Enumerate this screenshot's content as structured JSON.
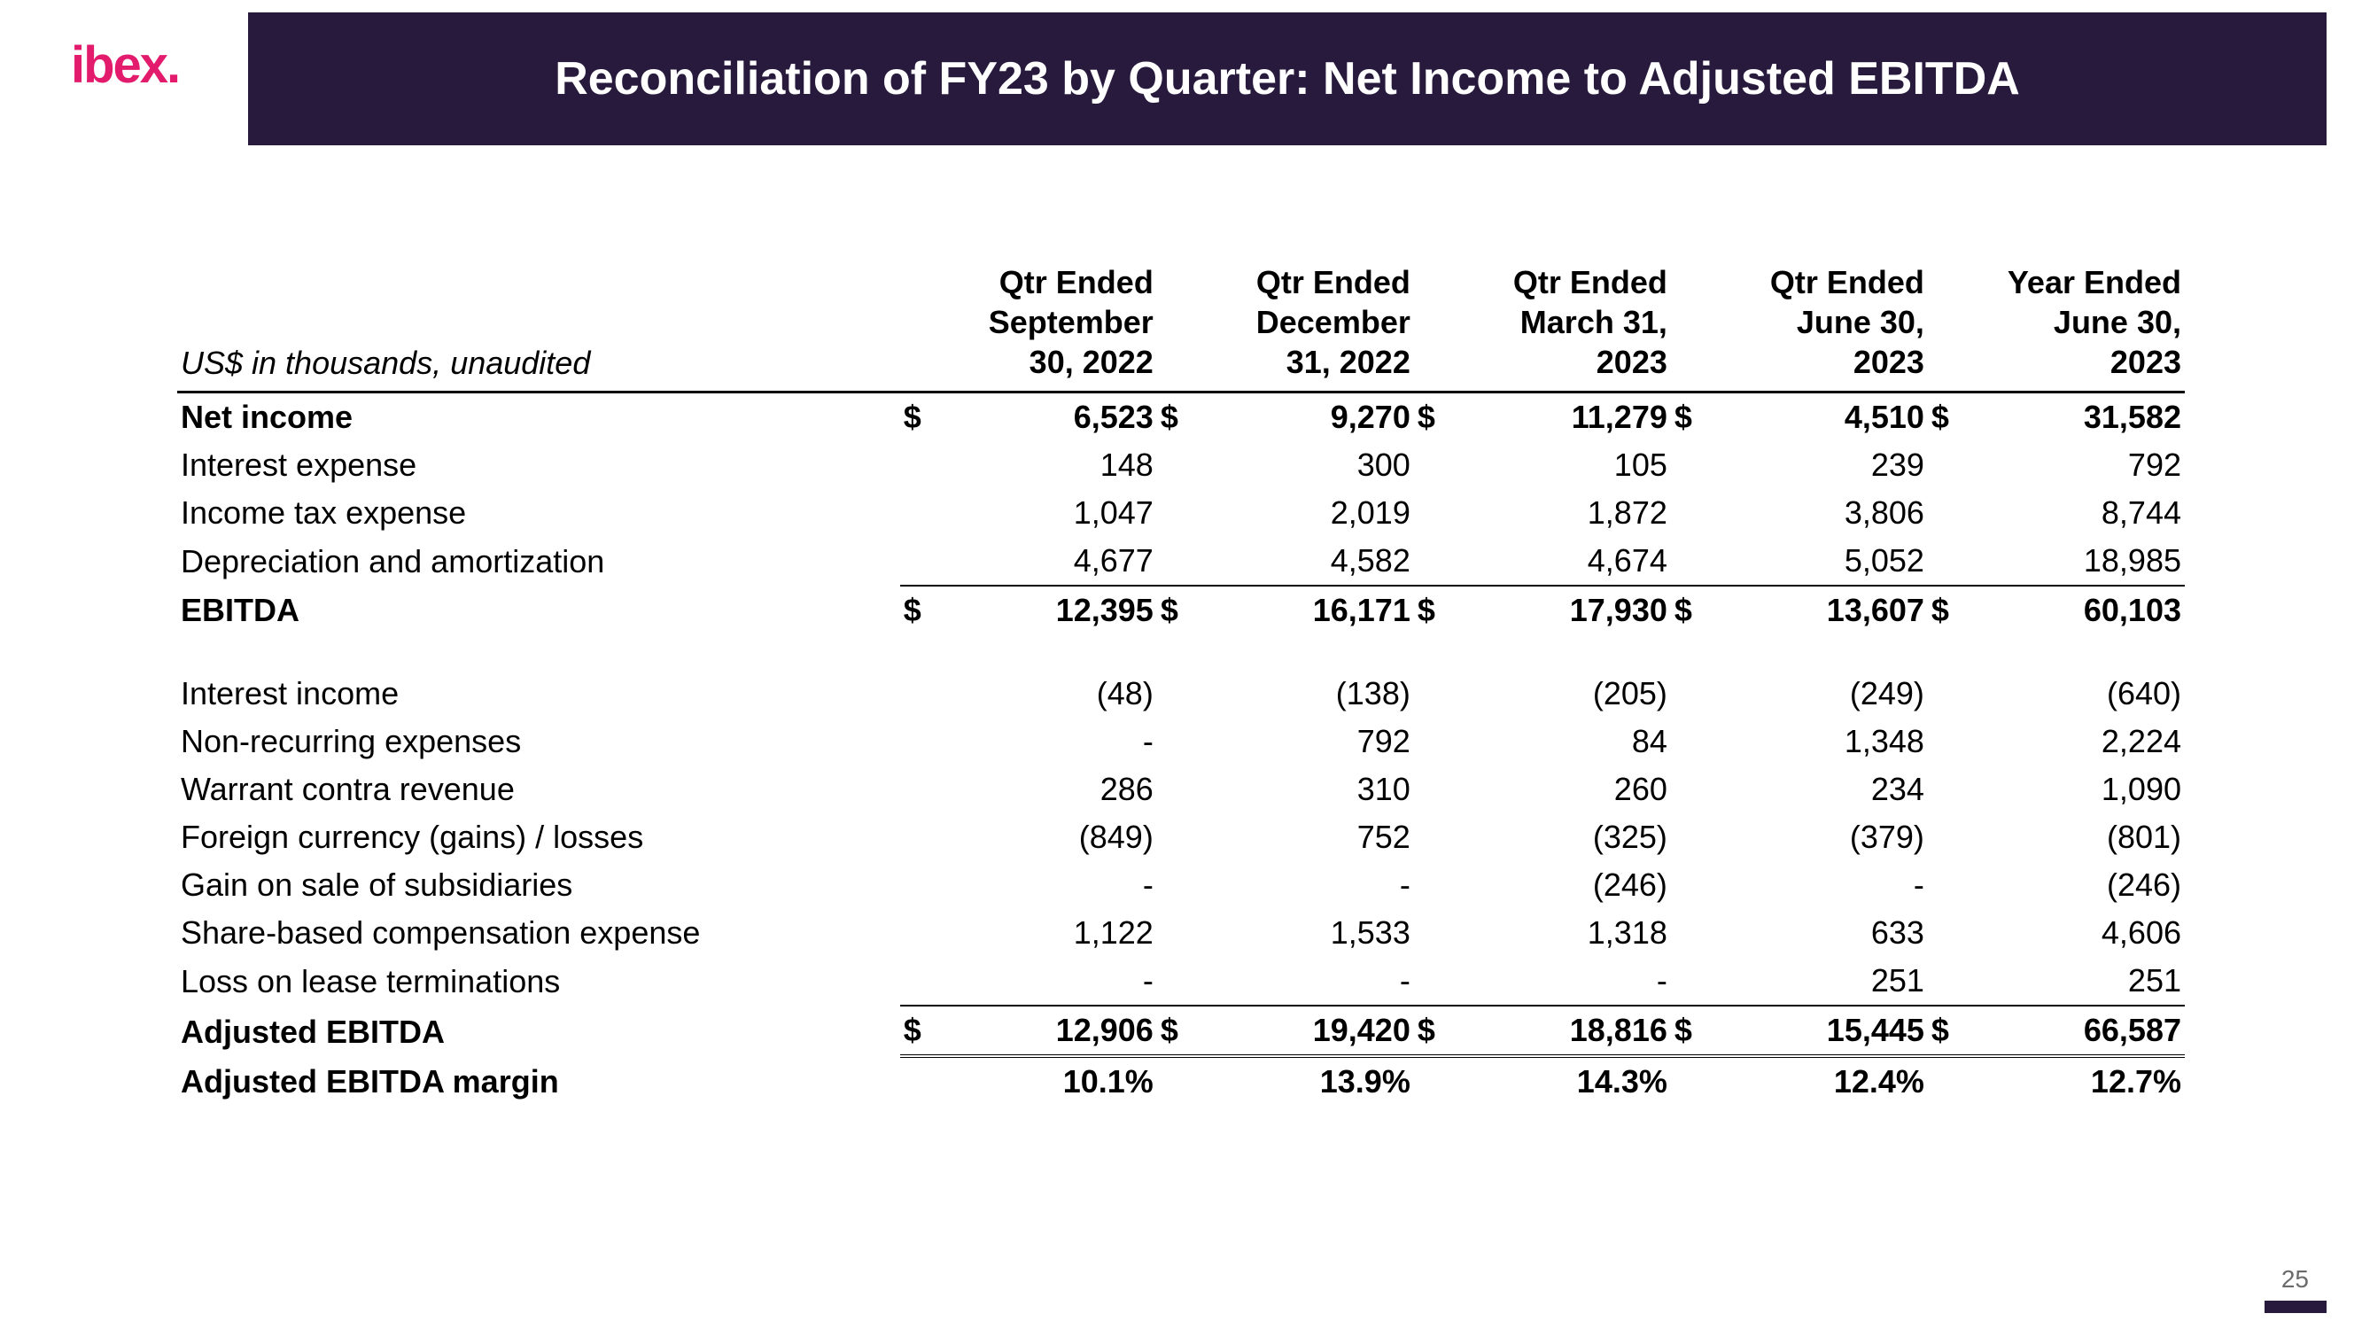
{
  "logo_text": "ibex.",
  "title": "Reconciliation of FY23 by Quarter: Net Income to Adjusted EBITDA",
  "page_number": "25",
  "colors": {
    "title_bg": "#271a3d",
    "title_text": "#ffffff",
    "logo": "#e31b6d",
    "rule": "#000000",
    "text": "#000000",
    "pagenum": "#6b6b6b"
  },
  "table": {
    "unit_note": "US$ in thousands, unaudited",
    "columns": [
      "Qtr Ended September 30, 2022",
      "Qtr Ended December 31, 2022",
      "Qtr Ended March 31, 2023",
      "Qtr Ended June 30, 2023",
      "Year Ended June 30, 2023"
    ],
    "currency_symbol": "$",
    "rows": [
      {
        "label": "Net income",
        "bold": true,
        "show_symbol": true,
        "values": [
          "6,523",
          "9,270",
          "11,279",
          "4,510",
          "31,582"
        ]
      },
      {
        "label": "Interest expense",
        "values": [
          "148",
          "300",
          "105",
          "239",
          "792"
        ]
      },
      {
        "label": "Income tax expense",
        "values": [
          "1,047",
          "2,019",
          "1,872",
          "3,806",
          "8,744"
        ]
      },
      {
        "label": "Depreciation and amortization",
        "values": [
          "4,677",
          "4,582",
          "4,674",
          "5,052",
          "18,985"
        ]
      },
      {
        "label": "EBITDA",
        "bold": true,
        "show_symbol": true,
        "top_rule": "thin",
        "values": [
          "12,395",
          "16,171",
          "17,930",
          "13,607",
          "60,103"
        ]
      },
      {
        "spacer": true
      },
      {
        "label": "Interest income",
        "values": [
          "(48)",
          "(138)",
          "(205)",
          "(249)",
          "(640)"
        ]
      },
      {
        "label": "Non-recurring expenses",
        "values": [
          "-",
          "792",
          "84",
          "1,348",
          "2,224"
        ]
      },
      {
        "label": "Warrant contra revenue",
        "values": [
          "286",
          "310",
          "260",
          "234",
          "1,090"
        ]
      },
      {
        "label": "Foreign currency (gains) / losses",
        "values": [
          "(849)",
          "752",
          "(325)",
          "(379)",
          "(801)"
        ]
      },
      {
        "label": "Gain on sale of subsidiaries",
        "values": [
          "-",
          "-",
          "(246)",
          "-",
          "(246)"
        ]
      },
      {
        "label": "Share-based compensation expense",
        "values": [
          "1,122",
          "1,533",
          "1,318",
          "633",
          "4,606"
        ]
      },
      {
        "label": "Loss on lease terminations",
        "values": [
          "-",
          "-",
          "-",
          "251",
          "251"
        ]
      },
      {
        "label": "Adjusted EBITDA",
        "bold": true,
        "show_symbol": true,
        "top_rule": "thin",
        "bottom_rule": "double",
        "values": [
          "12,906",
          "19,420",
          "18,816",
          "15,445",
          "66,587"
        ]
      },
      {
        "label": "Adjusted EBITDA margin",
        "bold": true,
        "values": [
          "10.1%",
          "13.9%",
          "14.3%",
          "12.4%",
          "12.7%"
        ]
      }
    ]
  }
}
